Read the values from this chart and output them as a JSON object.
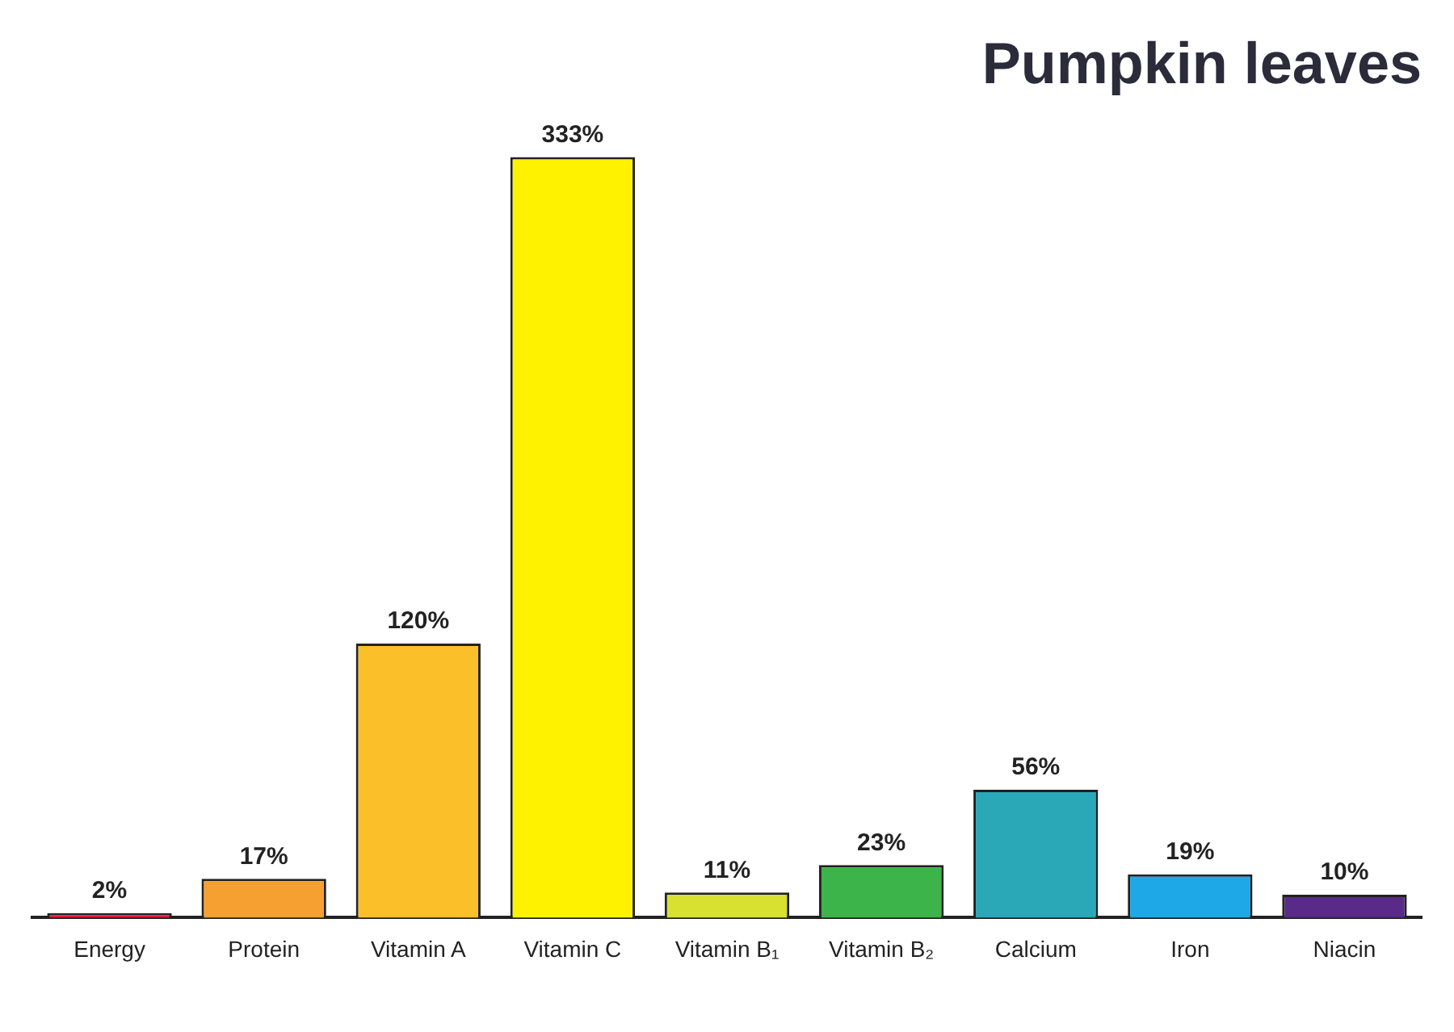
{
  "chart_data": {
    "type": "bar",
    "title": "Pumpkin leaves",
    "categories": [
      "Energy",
      "Protein",
      "Vitamin A",
      "Vitamin C",
      "Vitamin B₁",
      "Vitamin B₂",
      "Calcium",
      "Iron",
      "Niacin"
    ],
    "values": [
      2,
      17,
      120,
      333,
      11,
      23,
      56,
      19,
      10
    ],
    "colors": [
      "#e8173a",
      "#f5a030",
      "#fbbf2a",
      "#fff200",
      "#d8e030",
      "#3cb44a",
      "#2aa8b8",
      "#1ea8e8",
      "#5a2a8a"
    ],
    "value_labels": [
      "2%",
      "17%",
      "120%",
      "333%",
      "11%",
      "23%",
      "56%",
      "19%",
      "10%"
    ],
    "grid": false,
    "legend": false
  }
}
